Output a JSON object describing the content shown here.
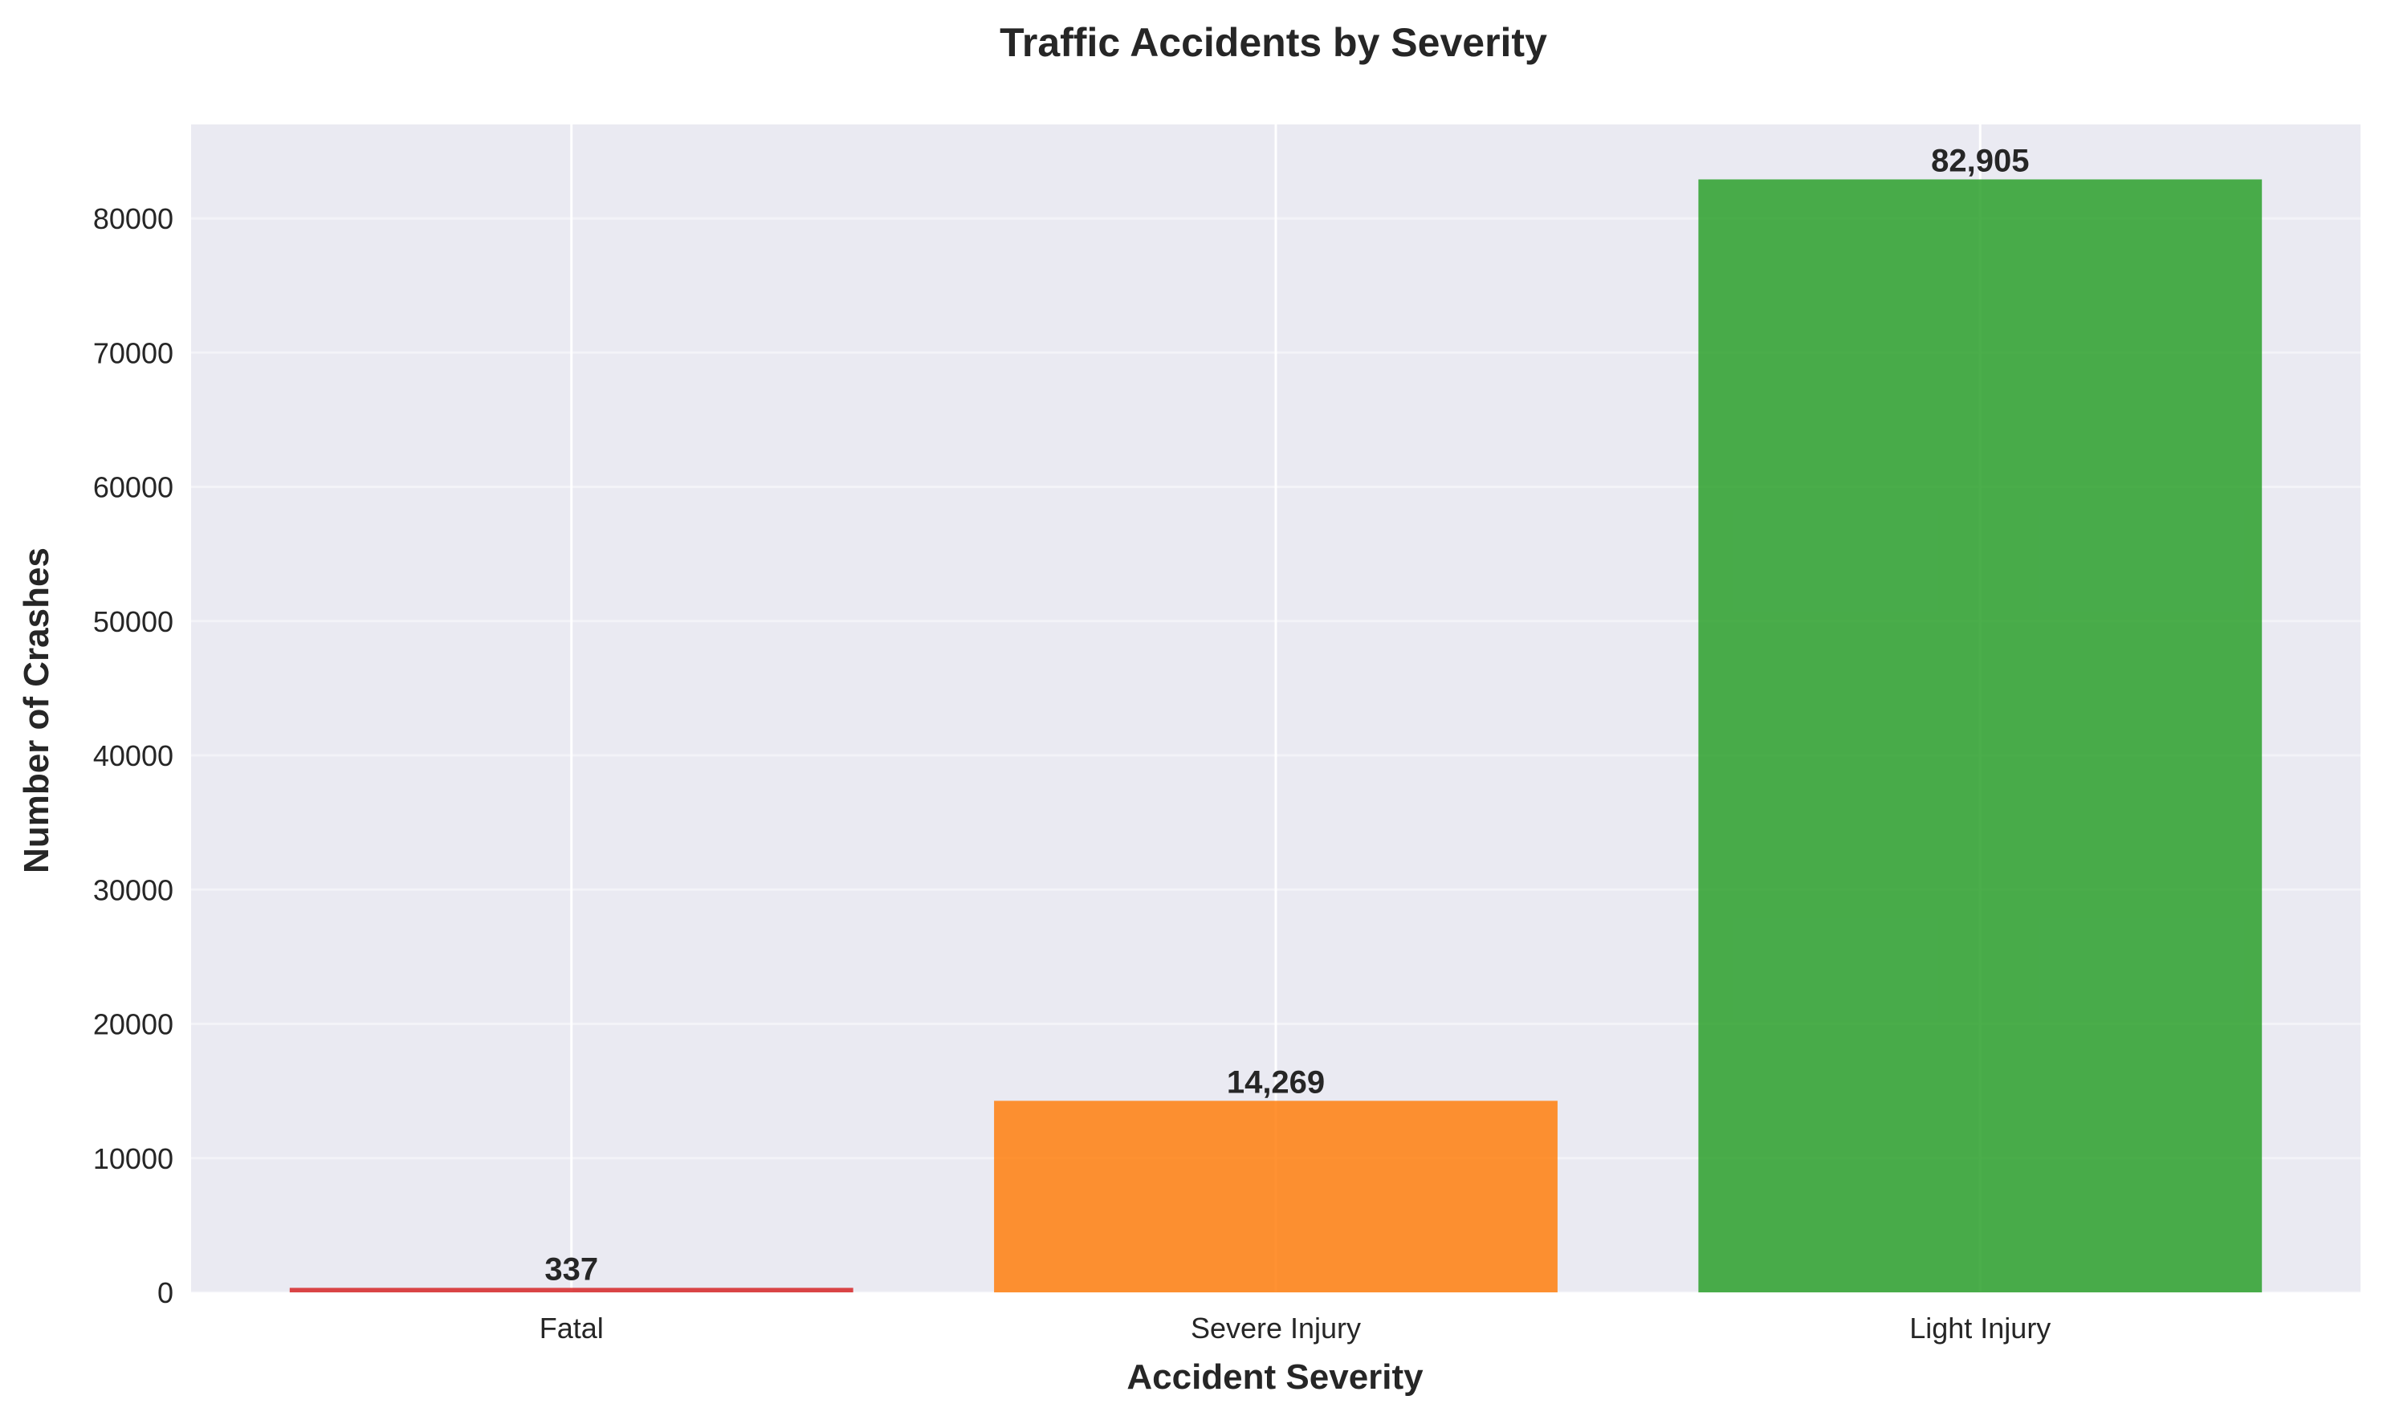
{
  "chart_data": {
    "type": "bar",
    "title": "Traffic Accidents by Severity",
    "xlabel": "Accident Severity",
    "ylabel": "Number of Crashes",
    "categories": [
      "Fatal",
      "Severe Injury",
      "Light Injury"
    ],
    "values": [
      337,
      14269,
      82905
    ],
    "value_labels": [
      "337",
      "14,269",
      "82,905"
    ],
    "colors": [
      "#d62728",
      "#ff7f0e",
      "#2ca02c"
    ],
    "ylim": [
      0,
      87000
    ],
    "yticks": [
      0,
      10000,
      20000,
      30000,
      40000,
      50000,
      60000,
      70000,
      80000
    ],
    "ytick_labels": [
      "0",
      "10000",
      "20000",
      "30000",
      "40000",
      "50000",
      "60000",
      "70000",
      "80000"
    ],
    "grid": true,
    "background": "#eaeaf2"
  }
}
